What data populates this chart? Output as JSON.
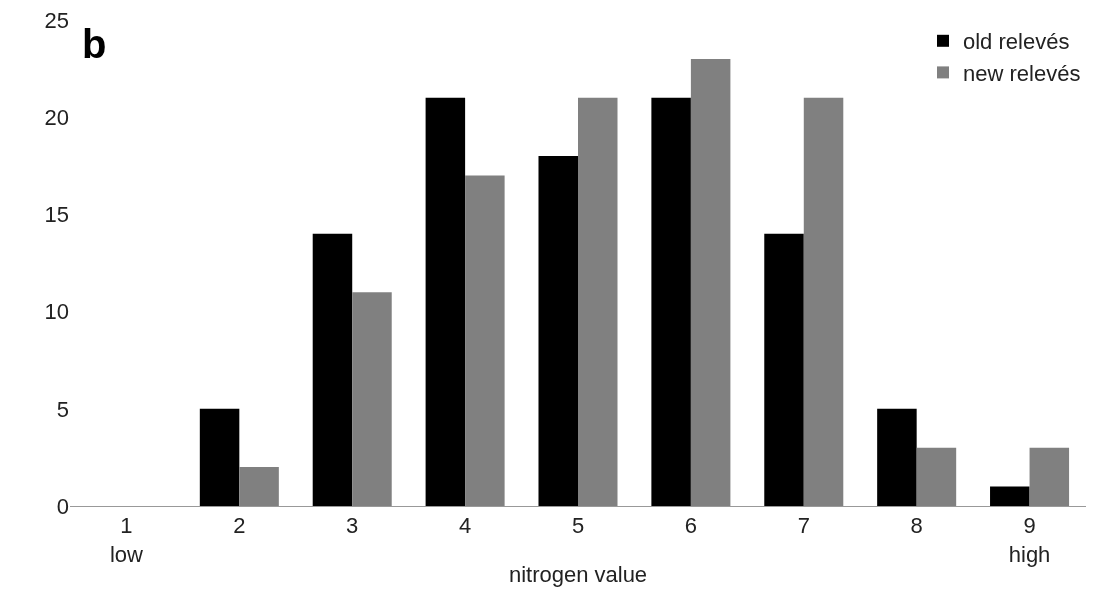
{
  "chart_data": {
    "type": "bar",
    "xlabel": "nitrogen value",
    "annotations": [
      "b"
    ],
    "categories": [
      "1\nlow",
      "2",
      "3",
      "4",
      "5",
      "6",
      "7",
      "8",
      "9\nhigh"
    ],
    "series": [
      {
        "name": "old relevés",
        "color": "#000000",
        "values": [
          0,
          5,
          14,
          21,
          18,
          21,
          14,
          5,
          1
        ]
      },
      {
        "name": "new relevés",
        "color": "#808080",
        "values": [
          0,
          2,
          11,
          17,
          21,
          23,
          21,
          3,
          3
        ]
      }
    ],
    "ylim": [
      0,
      25
    ],
    "yticks": [
      0,
      5,
      10,
      15,
      20,
      25
    ],
    "grid": false,
    "legend": "top right"
  }
}
